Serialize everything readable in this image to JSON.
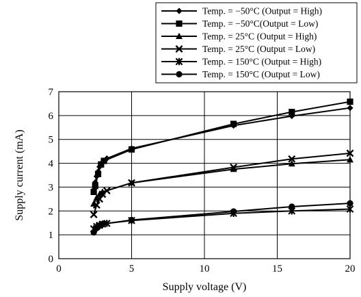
{
  "chart_data": {
    "type": "line",
    "title": "",
    "xlabel": "Supply voltage  (V)",
    "ylabel": "Supply current  (mA)",
    "xlim": [
      0,
      20
    ],
    "ylim": [
      0,
      7
    ],
    "xticks": [
      0,
      5,
      10,
      15,
      20
    ],
    "yticks": [
      0,
      1,
      2,
      3,
      4,
      5,
      6,
      7
    ],
    "grid": true,
    "legend_position": "top-right",
    "series": [
      {
        "name": "Temp. = −50°C (Output = High)",
        "marker": "diamond",
        "points": [
          [
            2.5,
            3.2
          ],
          [
            2.6,
            3.45
          ],
          [
            2.7,
            3.65
          ],
          [
            2.8,
            3.85
          ],
          [
            3.0,
            4.05
          ],
          [
            3.3,
            4.2
          ],
          [
            5.0,
            4.62
          ],
          [
            12.0,
            5.58
          ],
          [
            16.0,
            5.98
          ],
          [
            20.0,
            6.32
          ]
        ]
      },
      {
        "name": "Temp. = −50°C(Output = Low)",
        "marker": "square",
        "points": [
          [
            2.4,
            2.8
          ],
          [
            2.5,
            3.05
          ],
          [
            2.7,
            3.55
          ],
          [
            2.9,
            3.95
          ],
          [
            3.1,
            4.1
          ],
          [
            5.0,
            4.58
          ],
          [
            12.0,
            5.65
          ],
          [
            16.0,
            6.15
          ],
          [
            20.0,
            6.58
          ]
        ]
      },
      {
        "name": "Temp. = 25°C (Output = High)",
        "marker": "triangle",
        "points": [
          [
            2.4,
            2.3
          ],
          [
            2.6,
            2.55
          ],
          [
            2.8,
            2.7
          ],
          [
            3.0,
            2.8
          ],
          [
            5.0,
            3.18
          ],
          [
            12.0,
            3.75
          ],
          [
            16.0,
            3.98
          ],
          [
            20.0,
            4.15
          ]
        ]
      },
      {
        "name": "Temp. = 25°C (Output = Low)",
        "marker": "x",
        "points": [
          [
            2.4,
            1.85
          ],
          [
            2.6,
            2.25
          ],
          [
            2.8,
            2.5
          ],
          [
            3.0,
            2.7
          ],
          [
            3.3,
            2.85
          ],
          [
            5.0,
            3.18
          ],
          [
            12.0,
            3.83
          ],
          [
            16.0,
            4.18
          ],
          [
            20.0,
            4.42
          ]
        ]
      },
      {
        "name": "Temp. = 150°C (Output = High)",
        "marker": "asterisk",
        "points": [
          [
            2.4,
            1.25
          ],
          [
            2.6,
            1.35
          ],
          [
            2.8,
            1.4
          ],
          [
            3.0,
            1.45
          ],
          [
            3.3,
            1.48
          ],
          [
            5.0,
            1.6
          ],
          [
            12.0,
            1.9
          ],
          [
            16.0,
            2.0
          ],
          [
            20.0,
            2.08
          ]
        ]
      },
      {
        "name": "Temp. = 150°C (Output = Low)",
        "marker": "circle",
        "points": [
          [
            2.4,
            1.1
          ],
          [
            2.6,
            1.28
          ],
          [
            2.8,
            1.38
          ],
          [
            3.0,
            1.45
          ],
          [
            5.0,
            1.62
          ],
          [
            12.0,
            1.98
          ],
          [
            16.0,
            2.18
          ],
          [
            20.0,
            2.32
          ]
        ]
      }
    ]
  }
}
